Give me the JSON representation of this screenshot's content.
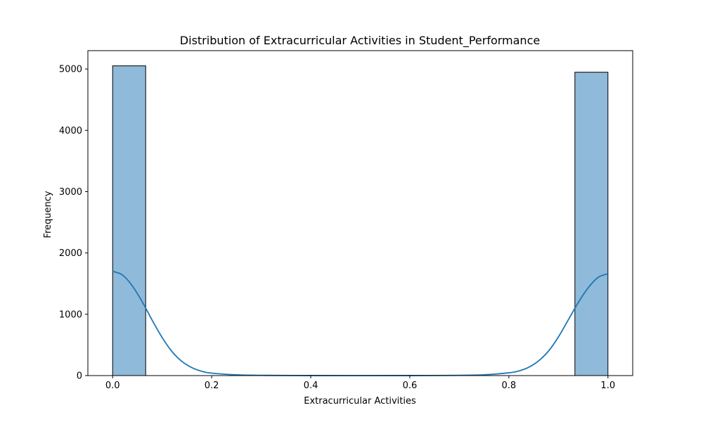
{
  "chart_data": {
    "type": "bar",
    "subtype": "histogram_with_kde",
    "title": "Distribution of Extracurricular Activities in Student_Performance",
    "xlabel": "Extracurricular Activities",
    "ylabel": "Frequency",
    "xlim": [
      -0.05,
      1.05
    ],
    "ylim": [
      0,
      5300
    ],
    "xticks": [
      0.0,
      0.2,
      0.4,
      0.6,
      0.8,
      1.0
    ],
    "xtick_labels": [
      "0.0",
      "0.2",
      "0.4",
      "0.6",
      "0.8",
      "1.0"
    ],
    "yticks": [
      0,
      1000,
      2000,
      3000,
      4000,
      5000
    ],
    "ytick_labels": [
      "0",
      "1000",
      "2000",
      "3000",
      "4000",
      "5000"
    ],
    "grid": false,
    "legend": "none",
    "bar_color": "#8fbad9",
    "bar_edge_color": "#000000",
    "kde_color": "#1f77b4",
    "bins": [
      {
        "x0": 0.0,
        "x1": 0.0667,
        "value": 5052
      },
      {
        "x0": 0.9333,
        "x1": 1.0,
        "value": 4948
      }
    ],
    "kde": {
      "x": [
        0.0,
        0.02,
        0.04,
        0.06,
        0.08,
        0.1,
        0.12,
        0.14,
        0.16,
        0.18,
        0.2,
        0.25,
        0.3,
        0.4,
        0.5,
        0.6,
        0.7,
        0.75,
        0.8,
        0.82,
        0.84,
        0.86,
        0.88,
        0.9,
        0.92,
        0.94,
        0.96,
        0.98,
        1.0
      ],
      "y": [
        1700,
        1640,
        1460,
        1200,
        900,
        620,
        390,
        230,
        130,
        70,
        40,
        12,
        4,
        1,
        0,
        1,
        4,
        12,
        45,
        75,
        135,
        240,
        400,
        630,
        910,
        1190,
        1430,
        1600,
        1660
      ]
    }
  }
}
